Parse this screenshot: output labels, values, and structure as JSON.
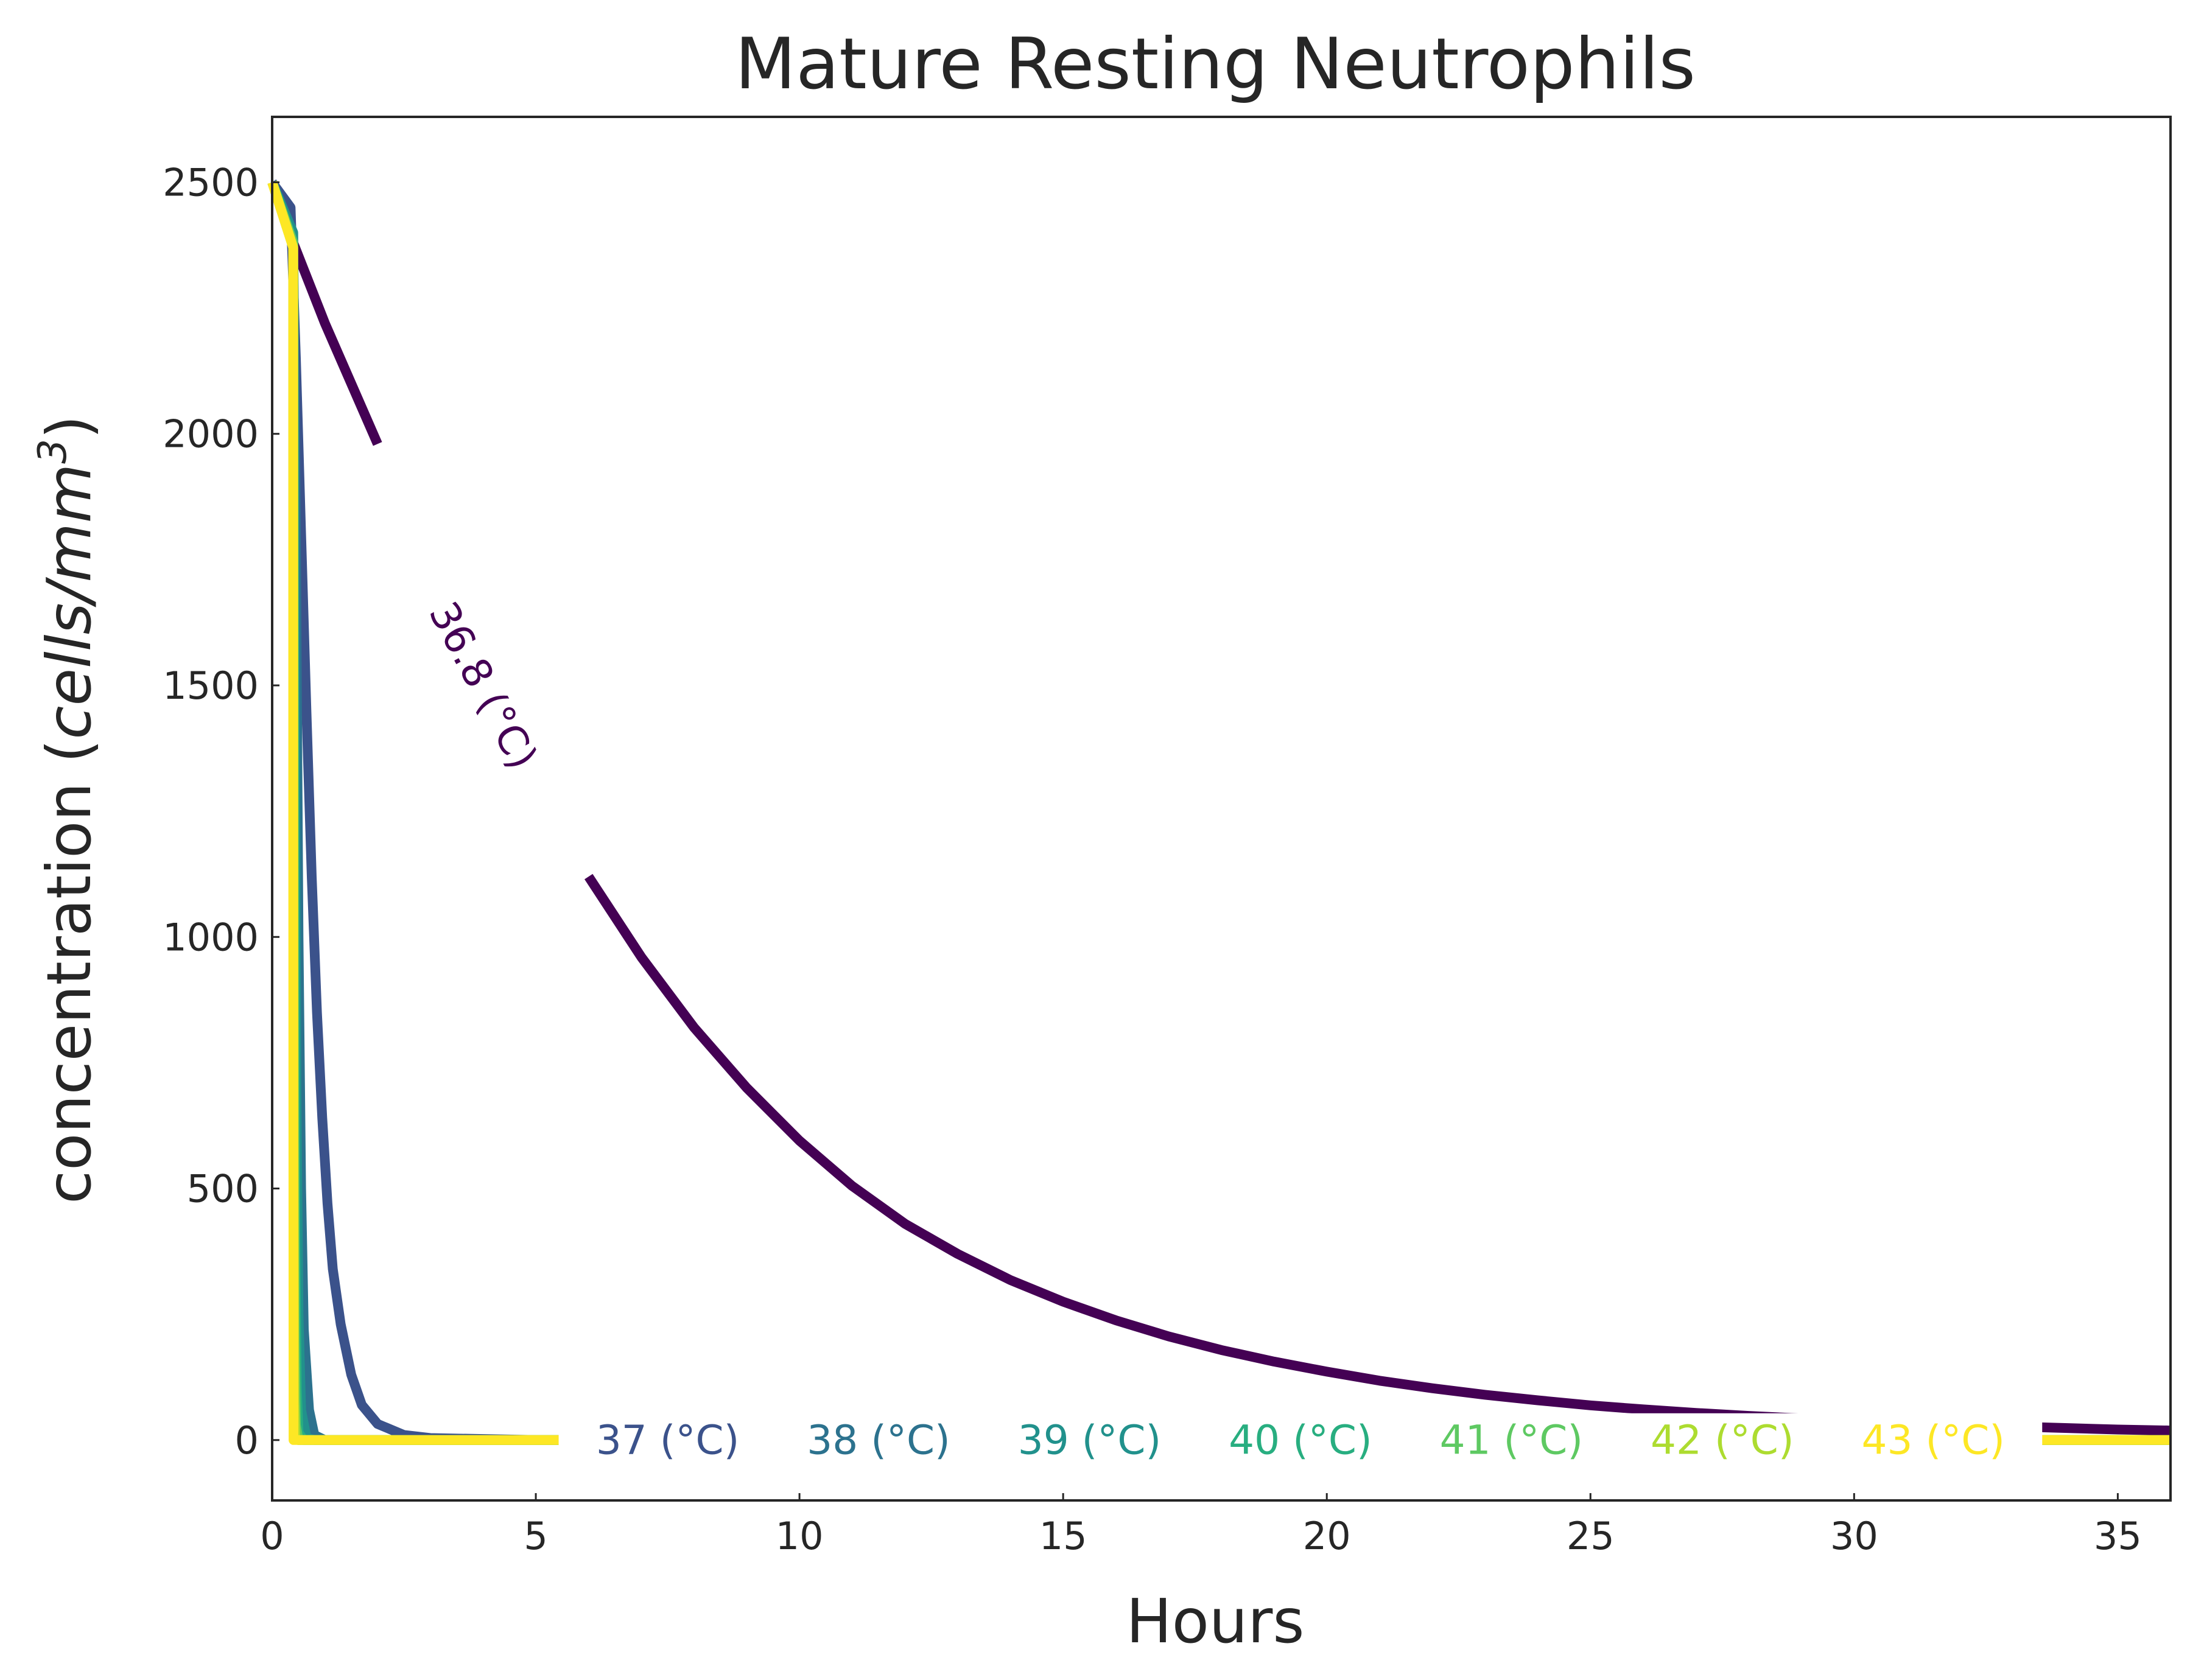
{
  "chart_data": {
    "type": "line",
    "title": "Mature Resting Neutrophils",
    "xlabel": "Hours",
    "ylabel_main": "concentration (",
    "ylabel_unit": "cells/mm",
    "ylabel_sup": "3",
    "ylabel_close": ")",
    "xlim": [
      0,
      36
    ],
    "ylim": [
      -120,
      2630
    ],
    "xticks": [
      0,
      5,
      10,
      15,
      20,
      25,
      30,
      35
    ],
    "yticks": [
      0,
      500,
      1000,
      1500,
      2000,
      2500
    ],
    "grid": false,
    "legend": "none",
    "series": [
      {
        "name": "36.8 (°C)",
        "label_x": 4.0,
        "label_y": 1500,
        "label_angle": 62,
        "gap": [
          2.9,
          5.5
        ],
        "color": "#440154",
        "points": [
          [
            0,
            2500
          ],
          [
            0.2,
            2450
          ],
          [
            0.4,
            2380
          ],
          [
            1,
            2220
          ],
          [
            2,
            1980
          ],
          [
            3,
            1740
          ],
          [
            4,
            1510
          ],
          [
            5,
            1300
          ],
          [
            6,
            1120
          ],
          [
            7,
            960
          ],
          [
            8,
            820
          ],
          [
            9,
            700
          ],
          [
            10,
            595
          ],
          [
            11,
            505
          ],
          [
            12,
            430
          ],
          [
            13,
            370
          ],
          [
            14,
            318
          ],
          [
            15,
            275
          ],
          [
            16,
            238
          ],
          [
            17,
            206
          ],
          [
            18,
            179
          ],
          [
            19,
            156
          ],
          [
            20,
            136
          ],
          [
            21,
            118
          ],
          [
            22,
            103
          ],
          [
            23,
            90
          ],
          [
            24,
            79
          ],
          [
            25,
            69
          ],
          [
            26,
            61
          ],
          [
            27,
            54
          ],
          [
            28,
            48
          ],
          [
            29,
            43
          ],
          [
            30,
            38
          ],
          [
            31,
            34
          ],
          [
            32,
            30
          ],
          [
            33,
            27
          ],
          [
            34,
            24
          ],
          [
            35,
            21
          ],
          [
            36,
            19
          ]
        ]
      },
      {
        "name": "37 (°C)",
        "label_x": 7.5,
        "label_y": 0,
        "color": "#3b528b",
        "points": [
          [
            0,
            2500
          ],
          [
            0.35,
            2450
          ],
          [
            0.45,
            2150
          ],
          [
            0.55,
            1800
          ],
          [
            0.65,
            1450
          ],
          [
            0.75,
            1120
          ],
          [
            0.85,
            850
          ],
          [
            0.95,
            640
          ],
          [
            1.05,
            470
          ],
          [
            1.15,
            340
          ],
          [
            1.3,
            230
          ],
          [
            1.5,
            130
          ],
          [
            1.7,
            70
          ],
          [
            2.0,
            32
          ],
          [
            2.5,
            10
          ],
          [
            3,
            4
          ],
          [
            5,
            0
          ],
          [
            36,
            0
          ]
        ]
      },
      {
        "name": "38 (°C)",
        "label_x": 11.5,
        "label_y": 0,
        "color": "#2c728e",
        "points": [
          [
            0,
            2500
          ],
          [
            0.4,
            2400
          ],
          [
            0.45,
            1800
          ],
          [
            0.5,
            1000
          ],
          [
            0.55,
            500
          ],
          [
            0.6,
            220
          ],
          [
            0.7,
            60
          ],
          [
            0.8,
            10
          ],
          [
            1.0,
            0
          ],
          [
            36,
            0
          ]
        ]
      },
      {
        "name": "39 (°C)",
        "label_x": 15.5,
        "label_y": 0,
        "color": "#21918c",
        "points": [
          [
            0,
            2500
          ],
          [
            0.4,
            2400
          ],
          [
            0.43,
            1500
          ],
          [
            0.46,
            700
          ],
          [
            0.5,
            250
          ],
          [
            0.55,
            60
          ],
          [
            0.65,
            5
          ],
          [
            0.8,
            0
          ],
          [
            36,
            0
          ]
        ]
      },
      {
        "name": "40 (°C)",
        "label_x": 19.5,
        "label_y": 0,
        "color": "#28ae80",
        "points": [
          [
            0,
            2500
          ],
          [
            0.4,
            2380
          ],
          [
            0.42,
            1200
          ],
          [
            0.44,
            400
          ],
          [
            0.47,
            100
          ],
          [
            0.5,
            15
          ],
          [
            0.6,
            0
          ],
          [
            36,
            0
          ]
        ]
      },
      {
        "name": "41 (°C)",
        "label_x": 23.5,
        "label_y": 0,
        "color": "#5ec962",
        "points": [
          [
            0,
            2500
          ],
          [
            0.4,
            2380
          ],
          [
            0.41,
            900
          ],
          [
            0.43,
            200
          ],
          [
            0.45,
            30
          ],
          [
            0.5,
            0
          ],
          [
            36,
            0
          ]
        ]
      },
      {
        "name": "42 (°C)",
        "label_x": 27.5,
        "label_y": 0,
        "color": "#addc30",
        "points": [
          [
            0,
            2500
          ],
          [
            0.4,
            2370
          ],
          [
            0.405,
            600
          ],
          [
            0.42,
            80
          ],
          [
            0.44,
            5
          ],
          [
            0.5,
            0
          ],
          [
            36,
            0
          ]
        ]
      },
      {
        "name": "43 (°C)",
        "label_x": 31.5,
        "label_y": 0,
        "color": "#fde725",
        "points": [
          [
            0,
            2500
          ],
          [
            0.4,
            2370
          ],
          [
            0.4,
            1200
          ],
          [
            0.405,
            0
          ],
          [
            36,
            0
          ]
        ]
      }
    ]
  }
}
